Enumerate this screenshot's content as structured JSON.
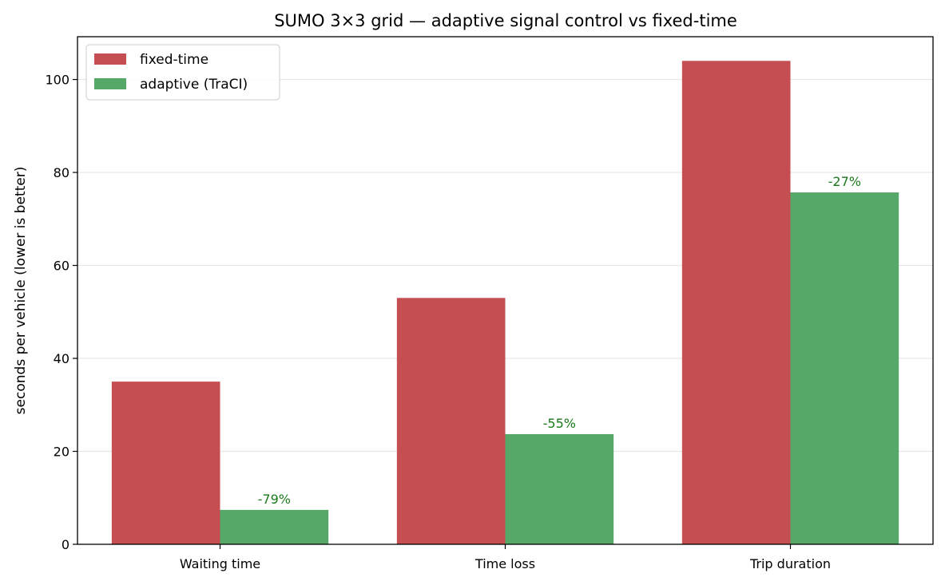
{
  "chart_data": {
    "type": "bar",
    "title": "SUMO 3×3 grid — adaptive signal control vs fixed-time",
    "xlabel": "",
    "ylabel": "seconds per vehicle (lower is better)",
    "categories": [
      "Waiting time",
      "Time loss",
      "Trip duration"
    ],
    "series": [
      {
        "name": "fixed-time",
        "color": "#c44e52",
        "values": [
          35.0,
          53.0,
          104.0
        ]
      },
      {
        "name": "adaptive (TraCI)",
        "color": "#55a868",
        "values": [
          7.4,
          23.7,
          75.7
        ]
      }
    ],
    "annotations": [
      "-79%",
      "-55%",
      "-27%"
    ],
    "annotation_color": "#1a7a1a",
    "ylim": [
      0,
      109.2
    ],
    "yticks": [
      0,
      20,
      40,
      60,
      80,
      100
    ],
    "grid": "y",
    "legend_position": "top-left"
  }
}
